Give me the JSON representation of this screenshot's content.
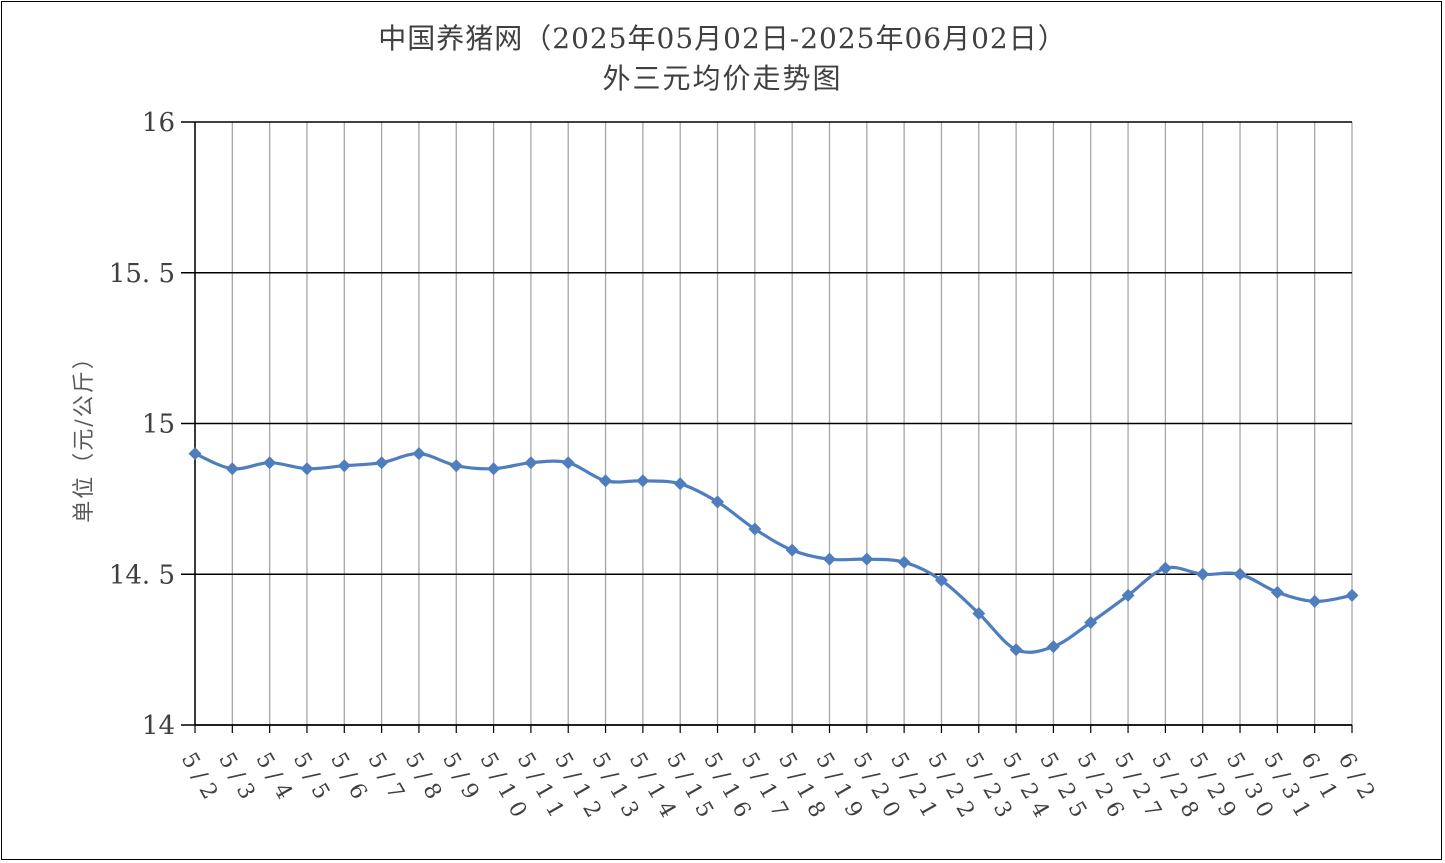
{
  "chart_data": {
    "type": "line",
    "title": "中国养猪网（2025年05月02日-2025年06月02日）",
    "subtitle": "外三元均价走势图",
    "ylabel": "单位（元/公斤）",
    "xlabel": "",
    "ylim": [
      14,
      16
    ],
    "yticks": [
      14,
      14.5,
      15,
      15.5,
      16
    ],
    "grid": true,
    "line_color": "#4F7EBE",
    "categories": [
      "5/2",
      "5/3",
      "5/4",
      "5/5",
      "5/6",
      "5/7",
      "5/8",
      "5/9",
      "5/10",
      "5/11",
      "5/12",
      "5/13",
      "5/14",
      "5/15",
      "5/16",
      "5/17",
      "5/18",
      "5/19",
      "5/20",
      "5/21",
      "5/22",
      "5/23",
      "5/24",
      "5/25",
      "5/26",
      "5/27",
      "5/28",
      "5/29",
      "5/30",
      "5/31",
      "6/1",
      "6/2"
    ],
    "values": [
      14.9,
      14.85,
      14.87,
      14.85,
      14.86,
      14.87,
      14.9,
      14.86,
      14.85,
      14.87,
      14.87,
      14.81,
      14.81,
      14.8,
      14.74,
      14.65,
      14.58,
      14.55,
      14.55,
      14.54,
      14.48,
      14.37,
      14.25,
      14.26,
      14.34,
      14.43,
      14.52,
      14.5,
      14.5,
      14.44,
      14.41,
      14.43
    ]
  }
}
